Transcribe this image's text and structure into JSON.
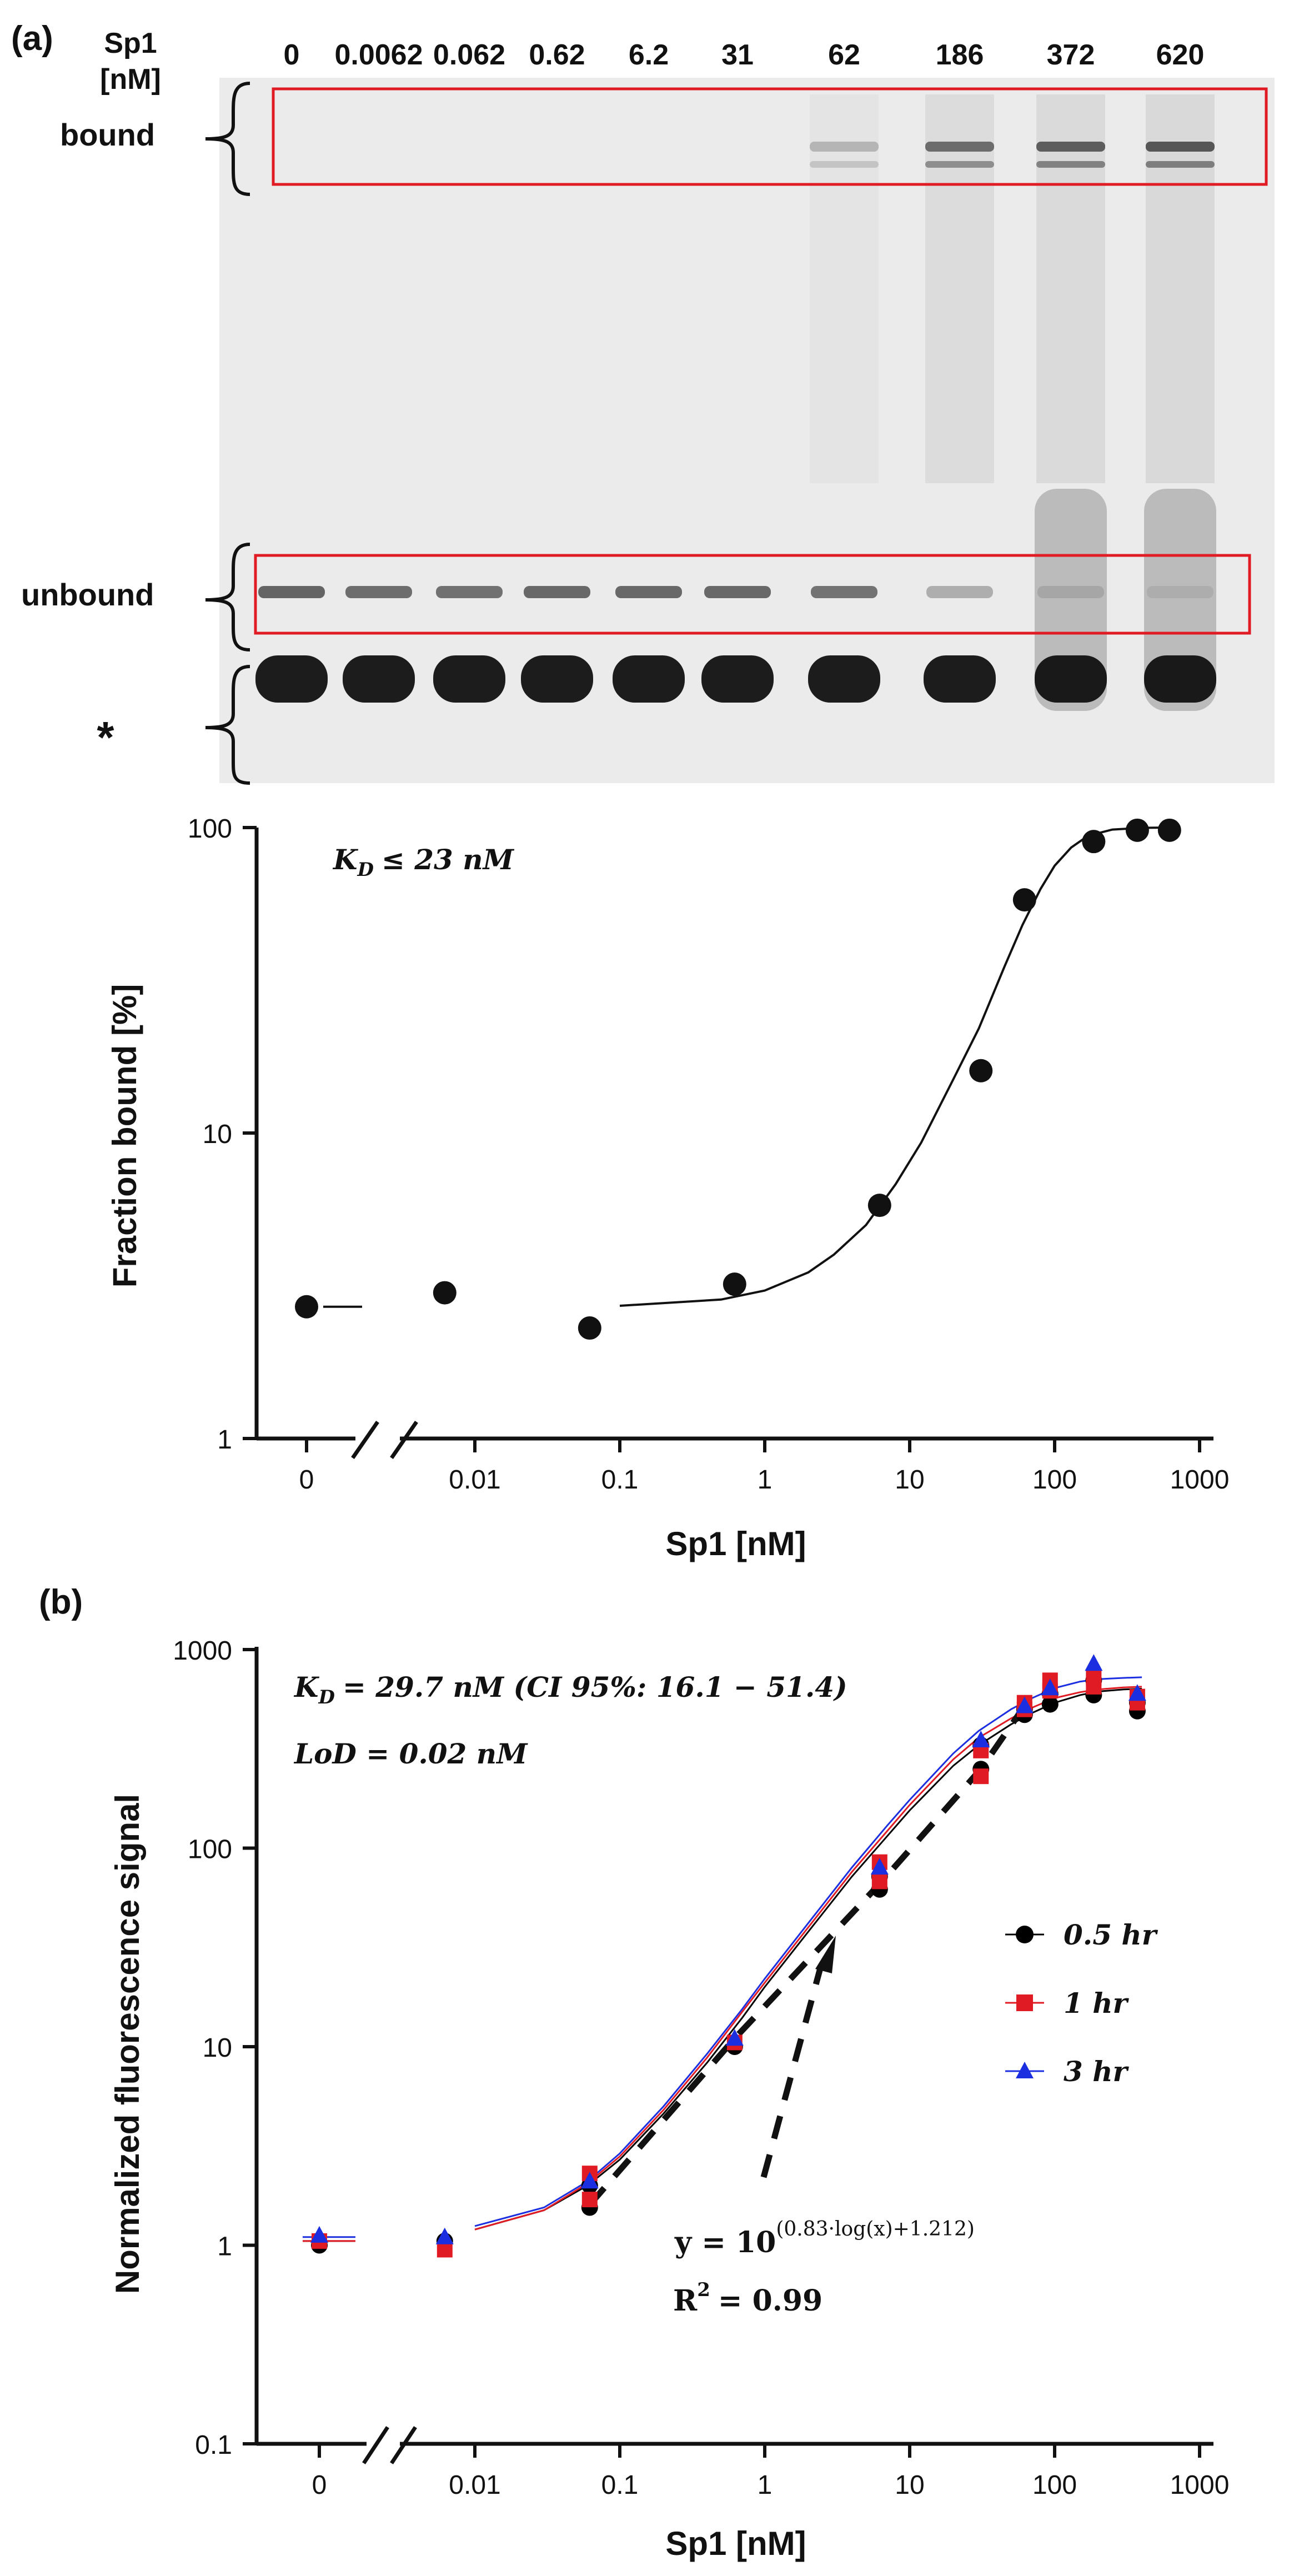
{
  "panel_labels": [
    "(a)",
    "(b)"
  ],
  "gel": {
    "conc_header": "Sp1",
    "conc_unit": "[nM]",
    "lanes": [
      "0",
      "0.0062",
      "0.062",
      "0.62",
      "6.2",
      "31",
      "62",
      "186",
      "372",
      "620"
    ],
    "bands": {
      "bound": "bound",
      "unbound": "unbound",
      "free": "*"
    },
    "bound_intensity": [
      0,
      0,
      0,
      0,
      0,
      0,
      0.22,
      0.55,
      0.62,
      0.65
    ],
    "unbound_intensity": [
      0.62,
      0.58,
      0.56,
      0.6,
      0.6,
      0.6,
      0.55,
      0.28,
      0.12,
      0.08
    ],
    "colors": {
      "box": "#e01b24",
      "band": "#111111",
      "background": "#ebebeb"
    }
  },
  "chart_data": [
    {
      "type": "scatter",
      "xlabel": "Sp1 [nM]",
      "ylabel": "Fraction bound [%]",
      "x_scale": "log",
      "y_scale": "log",
      "xlim": [
        0.001,
        1000
      ],
      "ylim": [
        1,
        100
      ],
      "x_ticks": [
        "0",
        "0.01",
        "0.1",
        "1",
        "10",
        "100",
        "1000"
      ],
      "y_ticks": [
        "1",
        "10",
        "100"
      ],
      "annotation": {
        "kd_symbol": "K",
        "kd_sub": "D",
        "kd_text": "≤ 23 nM"
      },
      "zero_point": {
        "x": 0,
        "y": 2.7
      },
      "points": [
        {
          "x": 0.0062,
          "y": 3.0
        },
        {
          "x": 0.062,
          "y": 2.3
        },
        {
          "x": 0.62,
          "y": 3.2
        },
        {
          "x": 6.2,
          "y": 5.8
        },
        {
          "x": 31,
          "y": 16
        },
        {
          "x": 62,
          "y": 58
        },
        {
          "x": 186,
          "y": 90
        },
        {
          "x": 372,
          "y": 98
        },
        {
          "x": 620,
          "y": 98
        }
      ],
      "fit_points": [
        [
          0.001,
          2.7
        ],
        [
          0.1,
          2.72
        ],
        [
          0.5,
          2.85
        ],
        [
          1,
          3.05
        ],
        [
          2,
          3.5
        ],
        [
          3,
          4.0
        ],
        [
          5,
          5.0
        ],
        [
          8,
          6.8
        ],
        [
          12,
          9.3
        ],
        [
          20,
          15
        ],
        [
          30,
          22
        ],
        [
          45,
          35
        ],
        [
          60,
          48
        ],
        [
          80,
          63
        ],
        [
          100,
          75
        ],
        [
          130,
          86
        ],
        [
          170,
          94
        ],
        [
          250,
          98.5
        ],
        [
          400,
          99.8
        ],
        [
          600,
          100
        ]
      ]
    },
    {
      "type": "scatter",
      "xlabel": "Sp1 [nM]",
      "ylabel": "Normalized fluorescence signal",
      "x_scale": "log",
      "y_scale": "log",
      "xlim": [
        0.001,
        1000
      ],
      "ylim": [
        0.1,
        1000
      ],
      "x_ticks": [
        "0",
        "0.01",
        "0.1",
        "1",
        "10",
        "100",
        "1000"
      ],
      "y_ticks": [
        "0.1",
        "1",
        "10",
        "100",
        "1000"
      ],
      "annotations": {
        "kd": {
          "symbol": "K",
          "sub": "D",
          "text": "= 29.7 nM (CI 95%: 16.1 − 51.4)"
        },
        "lod": "LoD = 0.02 nM",
        "eq_base": "y = 10",
        "eq_exp": "(0.83·log(x)+1.212)",
        "r2_base": "R",
        "r2_sup": "2",
        "r2_val": "= 0.99"
      },
      "legend_position": "right",
      "series": [
        {
          "name": "0.5 hr",
          "color": "#000000",
          "marker": "circle",
          "zero": [
            0,
            1.0
          ],
          "points": [
            [
              0.0062,
              1.05
            ],
            [
              0.062,
              1.55
            ],
            [
              0.062,
              2.0
            ],
            [
              0.62,
              10
            ],
            [
              6.2,
              62
            ],
            [
              6.2,
              72
            ],
            [
              31,
              250
            ],
            [
              31,
              330
            ],
            [
              62,
              470
            ],
            [
              62,
              500
            ],
            [
              93,
              530
            ],
            [
              93,
              600
            ],
            [
              186,
              590
            ],
            [
              186,
              700
            ],
            [
              372,
              490
            ],
            [
              372,
              540
            ]
          ]
        },
        {
          "name": "1 hr",
          "color": "#e01b24",
          "marker": "square",
          "zero": [
            0,
            1.05
          ],
          "points": [
            [
              0.0062,
              0.95
            ],
            [
              0.062,
              1.7
            ],
            [
              0.062,
              2.3
            ],
            [
              0.62,
              10.5
            ],
            [
              6.2,
              68
            ],
            [
              6.2,
              85
            ],
            [
              31,
              230
            ],
            [
              31,
              310
            ],
            [
              62,
              500
            ],
            [
              62,
              540
            ],
            [
              93,
              620
            ],
            [
              93,
              700
            ],
            [
              186,
              650
            ],
            [
              186,
              720
            ],
            [
              372,
              540
            ],
            [
              372,
              580
            ]
          ]
        },
        {
          "name": "3 hr",
          "color": "#1b2ee0",
          "marker": "triangle",
          "zero": [
            0,
            1.12
          ],
          "points": [
            [
              0.0062,
              1.1
            ],
            [
              0.062,
              2.1
            ],
            [
              0.62,
              11
            ],
            [
              6.2,
              80
            ],
            [
              31,
              350
            ],
            [
              62,
              520
            ],
            [
              93,
              640
            ],
            [
              186,
              850
            ],
            [
              372,
              600
            ]
          ]
        }
      ],
      "fit_x": [
        0.001,
        0.01,
        0.03,
        0.06,
        0.1,
        0.2,
        0.4,
        0.7,
        1,
        2,
        4,
        7,
        10,
        20,
        30,
        50,
        70,
        100,
        150,
        200,
        300,
        400
      ],
      "fit_curves": [
        {
          "color": "#000000",
          "y": [
            1.05,
            1.2,
            1.5,
            2.0,
            2.7,
            4.6,
            8.3,
            14,
            20,
            38,
            72,
            115,
            155,
            260,
            330,
            420,
            480,
            540,
            590,
            615,
            630,
            635
          ]
        },
        {
          "color": "#e01b24",
          "y": [
            1.05,
            1.2,
            1.5,
            2.05,
            2.8,
            4.8,
            8.8,
            15,
            21,
            40,
            76,
            122,
            165,
            280,
            360,
            450,
            510,
            570,
            610,
            630,
            645,
            650
          ]
        },
        {
          "color": "#1b2ee0",
          "y": [
            1.1,
            1.25,
            1.55,
            2.1,
            2.9,
            5.0,
            9.2,
            15.5,
            22,
            42,
            80,
            130,
            175,
            300,
            390,
            500,
            570,
            640,
            690,
            710,
            720,
            725
          ]
        }
      ],
      "linear_fit": {
        "type": "dashed",
        "points": [
          [
            0.062,
            1.6
          ],
          [
            0.62,
            11
          ],
          [
            6.2,
            66
          ],
          [
            31,
            250
          ],
          [
            62,
            520
          ]
        ]
      }
    }
  ]
}
